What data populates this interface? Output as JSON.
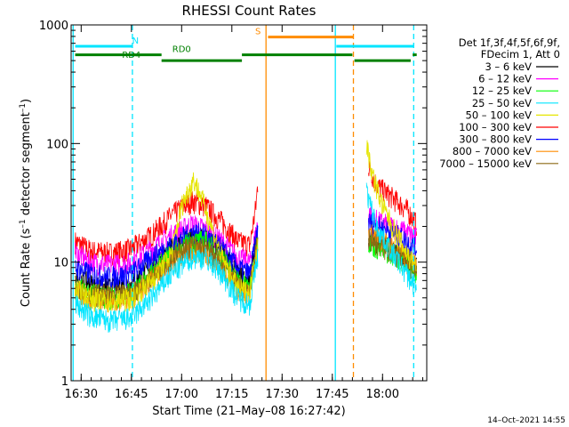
{
  "chart_data": {
    "type": "line",
    "title": "RHESSI Count Rates",
    "xlabel": "Start Time (21–May–08 16:27:42)",
    "ylabel_main": "Count Rate (s",
    "ylabel_sup1": "–1",
    "ylabel_mid": " detector segment",
    "ylabel_sup2": "–1",
    "ylabel_end": ")",
    "yscale": "log",
    "ylim": [
      1,
      1000
    ],
    "xlim_minutes": [
      16.45,
      18.22
    ],
    "x_ticks": [
      {
        "label": "16:30",
        "t": 16.5
      },
      {
        "label": "16:45",
        "t": 16.75
      },
      {
        "label": "17:00",
        "t": 17.0
      },
      {
        "label": "17:15",
        "t": 17.25
      },
      {
        "label": "17:30",
        "t": 17.5
      },
      {
        "label": "17:45",
        "t": 17.75
      },
      {
        "label": "18:00",
        "t": 18.0
      }
    ],
    "y_ticks": [
      {
        "label": "1",
        "v": 1
      },
      {
        "label": "10",
        "v": 10
      },
      {
        "label": "100",
        "v": 100
      },
      {
        "label": "1000",
        "v": 1000
      }
    ],
    "legend_header": [
      "Det 1f,3f,4f,5f,6f,9f,",
      "FDecim 1, Att 0"
    ],
    "legend_position": "right",
    "series": [
      {
        "name": "3 – 6 keV",
        "color": "#000000"
      },
      {
        "name": "6 – 12 keV",
        "color": "#ff00ff"
      },
      {
        "name": "12 – 25 keV",
        "color": "#00ff00"
      },
      {
        "name": "25 – 50 keV",
        "color": "#00e5ff"
      },
      {
        "name": "50 – 100 keV",
        "color": "#e5e500"
      },
      {
        "name": "100 – 300 keV",
        "color": "#ff0000"
      },
      {
        "name": "300 – 800 keV",
        "color": "#0000ff"
      },
      {
        "name": "800 – 7000 keV",
        "color": "#ff8c00"
      },
      {
        "name": "7000 – 15000 keV",
        "color": "#8b6914"
      }
    ],
    "curves": [
      {
        "color": "#ff0000",
        "points": [
          [
            16.47,
            15
          ],
          [
            16.55,
            12.5
          ],
          [
            16.65,
            12
          ],
          [
            16.75,
            13
          ],
          [
            16.85,
            17
          ],
          [
            16.95,
            25
          ],
          [
            17.05,
            33
          ],
          [
            17.12,
            30
          ],
          [
            17.2,
            22
          ],
          [
            17.28,
            15
          ],
          [
            17.34,
            14
          ],
          [
            17.37,
            30
          ],
          [
            17.38,
            48
          ]
        ],
        "after": [
          [
            17.93,
            65
          ],
          [
            17.97,
            45
          ],
          [
            18.05,
            35
          ],
          [
            18.12,
            28
          ],
          [
            18.17,
            21
          ]
        ]
      },
      {
        "color": "#ff00ff",
        "points": [
          [
            16.47,
            12
          ],
          [
            16.55,
            10
          ],
          [
            16.65,
            9.5
          ],
          [
            16.75,
            10
          ],
          [
            16.85,
            13
          ],
          [
            16.95,
            17
          ],
          [
            17.05,
            21
          ],
          [
            17.12,
            19
          ],
          [
            17.2,
            15
          ],
          [
            17.28,
            11
          ],
          [
            17.34,
            10
          ],
          [
            17.38,
            22
          ]
        ],
        "after": [
          [
            17.93,
            26
          ],
          [
            17.98,
            22
          ],
          [
            18.05,
            20
          ],
          [
            18.12,
            18
          ],
          [
            18.17,
            16
          ]
        ]
      },
      {
        "color": "#000000",
        "points": [
          [
            16.47,
            7.5
          ],
          [
            16.55,
            6.5
          ],
          [
            16.65,
            6
          ],
          [
            16.75,
            6.5
          ],
          [
            16.85,
            9
          ],
          [
            16.95,
            13
          ],
          [
            17.05,
            16
          ],
          [
            17.12,
            16
          ],
          [
            17.2,
            12
          ],
          [
            17.28,
            8
          ],
          [
            17.34,
            7
          ],
          [
            17.38,
            18
          ]
        ],
        "after": [
          [
            17.93,
            16
          ],
          [
            17.98,
            15
          ],
          [
            18.05,
            13
          ],
          [
            18.12,
            11
          ],
          [
            18.17,
            9
          ]
        ]
      },
      {
        "color": "#0000ff",
        "points": [
          [
            16.47,
            9
          ],
          [
            16.55,
            8
          ],
          [
            16.65,
            7.5
          ],
          [
            16.75,
            8
          ],
          [
            16.85,
            11
          ],
          [
            16.95,
            14
          ],
          [
            17.05,
            18
          ],
          [
            17.12,
            17
          ],
          [
            17.2,
            13
          ],
          [
            17.28,
            9
          ],
          [
            17.34,
            8
          ],
          [
            17.38,
            20
          ]
        ],
        "after": [
          [
            17.93,
            22
          ],
          [
            17.98,
            20
          ],
          [
            18.05,
            18
          ],
          [
            18.12,
            15
          ],
          [
            18.17,
            13
          ]
        ]
      },
      {
        "color": "#00ff00",
        "points": [
          [
            16.47,
            6.5
          ],
          [
            16.55,
            5.5
          ],
          [
            16.65,
            5
          ],
          [
            16.75,
            5.5
          ],
          [
            16.85,
            8
          ],
          [
            16.95,
            12
          ],
          [
            17.05,
            15
          ],
          [
            17.12,
            15
          ],
          [
            17.2,
            11
          ],
          [
            17.28,
            7
          ],
          [
            17.34,
            6
          ],
          [
            17.38,
            16
          ]
        ],
        "after": [
          [
            17.93,
            15
          ],
          [
            17.98,
            13
          ],
          [
            18.05,
            12
          ],
          [
            18.12,
            10
          ],
          [
            18.17,
            8
          ]
        ]
      },
      {
        "color": "#ff8c00",
        "points": [
          [
            16.47,
            6
          ],
          [
            16.55,
            5
          ],
          [
            16.65,
            4.8
          ],
          [
            16.75,
            5
          ],
          [
            16.85,
            7
          ],
          [
            16.95,
            10
          ],
          [
            17.05,
            12.5
          ],
          [
            17.12,
            12
          ],
          [
            17.2,
            9
          ],
          [
            17.28,
            6
          ],
          [
            17.34,
            5.5
          ],
          [
            17.38,
            15
          ]
        ],
        "after": [
          [
            17.93,
            18
          ],
          [
            17.98,
            16
          ],
          [
            18.05,
            13
          ],
          [
            18.12,
            11
          ],
          [
            18.17,
            9
          ]
        ]
      },
      {
        "color": "#8b6914",
        "points": [
          [
            16.47,
            6.5
          ],
          [
            16.55,
            5.5
          ],
          [
            16.65,
            5.2
          ],
          [
            16.75,
            5.5
          ],
          [
            16.85,
            7.5
          ],
          [
            16.95,
            11
          ],
          [
            17.05,
            14
          ],
          [
            17.12,
            13
          ],
          [
            17.2,
            10
          ],
          [
            17.28,
            6.5
          ],
          [
            17.34,
            6
          ],
          [
            17.38,
            16
          ]
        ],
        "after": [
          [
            17.93,
            16
          ],
          [
            17.98,
            14
          ],
          [
            18.05,
            12
          ],
          [
            18.12,
            10
          ],
          [
            18.17,
            8.5
          ]
        ]
      },
      {
        "color": "#e5e500",
        "points": [
          [
            16.47,
            6
          ],
          [
            16.55,
            5
          ],
          [
            16.65,
            4.7
          ],
          [
            16.75,
            5
          ],
          [
            16.85,
            7
          ],
          [
            16.95,
            12
          ],
          [
            17.0,
            30
          ],
          [
            17.06,
            50
          ],
          [
            17.1,
            35
          ],
          [
            17.2,
            11
          ],
          [
            17.28,
            6
          ],
          [
            17.34,
            5.5
          ],
          [
            17.38,
            15
          ]
        ],
        "after": [
          [
            17.92,
            100
          ],
          [
            17.95,
            55
          ],
          [
            18.0,
            30
          ],
          [
            18.05,
            20
          ],
          [
            18.12,
            12
          ],
          [
            18.17,
            9
          ]
        ]
      },
      {
        "color": "#00e5ff",
        "points": [
          [
            16.47,
            4.5
          ],
          [
            16.55,
            3.5
          ],
          [
            16.65,
            3.2
          ],
          [
            16.75,
            3.4
          ],
          [
            16.85,
            5
          ],
          [
            16.95,
            8
          ],
          [
            17.05,
            11
          ],
          [
            17.12,
            11
          ],
          [
            17.2,
            8
          ],
          [
            17.28,
            5
          ],
          [
            17.34,
            4.5
          ],
          [
            17.38,
            12
          ]
        ],
        "after": [
          [
            17.92,
            40
          ],
          [
            17.97,
            20
          ],
          [
            18.05,
            12
          ],
          [
            18.12,
            8
          ],
          [
            18.17,
            6
          ]
        ]
      }
    ],
    "vertical_lines": [
      {
        "t": 16.46,
        "color": "#00e5ff",
        "style": "solid"
      },
      {
        "t": 16.755,
        "color": "#00e5ff",
        "style": "dashed"
      },
      {
        "t": 17.42,
        "color": "#ff8c00",
        "style": "solid"
      },
      {
        "t": 17.765,
        "color": "#00e5ff",
        "style": "solid"
      },
      {
        "t": 17.855,
        "color": "#ff8c00",
        "style": "dashed"
      },
      {
        "t": 18.155,
        "color": "#00e5ff",
        "style": "dashed"
      }
    ],
    "state_bars": [
      {
        "t0": 16.47,
        "t1": 16.755,
        "v": 660,
        "color": "#00e5ff",
        "label": "N",
        "label_t": 16.77
      },
      {
        "t0": 17.43,
        "t1": 17.855,
        "v": 790,
        "color": "#ff8c00",
        "label": "S",
        "label_t": 17.38
      },
      {
        "t0": 17.77,
        "t1": 18.155,
        "v": 660,
        "color": "#00e5ff",
        "label": "",
        "label_t": 0
      },
      {
        "t0": 16.47,
        "t1": 16.9,
        "v": 560,
        "color": "#008000",
        "label": "RD0",
        "label_t": 17.0
      },
      {
        "t0": 16.9,
        "t1": 17.3,
        "v": 500,
        "color": "#008000",
        "label": "RD4",
        "label_t": 16.75
      },
      {
        "t0": 17.3,
        "t1": 17.85,
        "v": 560,
        "color": "#008000",
        "label": "",
        "label_t": 0
      },
      {
        "t0": 17.86,
        "t1": 18.14,
        "v": 500,
        "color": "#008000",
        "label": "",
        "label_t": 0
      },
      {
        "t0": 18.15,
        "t1": 18.17,
        "v": 560,
        "color": "#008000",
        "label": "",
        "label_t": 0
      }
    ]
  },
  "footer": {
    "timestamp": "14–Oct–2021 14:55"
  }
}
